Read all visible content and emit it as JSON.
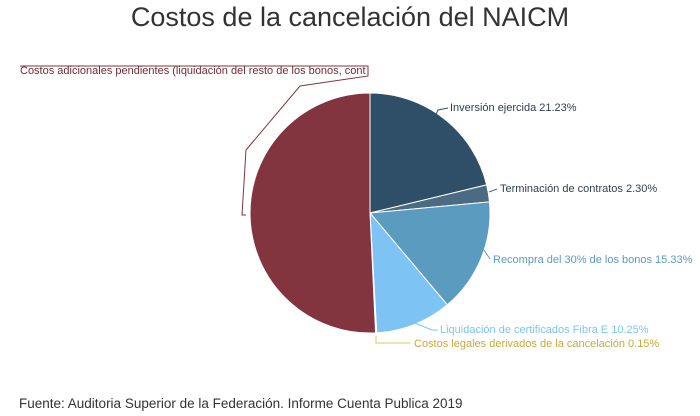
{
  "title": "Costos de la cancelación del NAICM",
  "source": "Fuente: Auditoria Superior de la Federación. Informe Cuenta Publica 2019",
  "chart_data": {
    "type": "pie",
    "title": "Costos de la cancelación del NAICM",
    "start_angle_deg": 0,
    "direction": "clockwise",
    "legend": "none",
    "slices": [
      {
        "label": "Inversión ejercida",
        "value": 21.23,
        "display": "Inversión ejercida 21.23%",
        "color": "#2f4f68"
      },
      {
        "label": "Terminación de contratos",
        "value": 2.3,
        "display": "Terminación de contratos 2.30%",
        "color": "#4a6b82"
      },
      {
        "label": "Recompra del 30% de los bonos",
        "value": 15.33,
        "display": "Recompra del 30% de los bonos 15.33%",
        "color": "#5b9bc0"
      },
      {
        "label": "Liquidación de certificados Fibra E",
        "value": 10.25,
        "display": "Liquidación de certificados Fibra E 10.25%",
        "color": "#7dc4f4"
      },
      {
        "label": "Costos legales derivados de la cancelación",
        "value": 0.15,
        "display": "Costos legales derivados de la cancelación 0.15%",
        "color": "#e3c45c"
      },
      {
        "label": "Costos adicionales pendientes (liquidación del resto de los bonos, cont",
        "value": 50.74,
        "display": "Costos adicionales pendientes (liquidación del resto de los bonos, cont",
        "color": "#82343f"
      }
    ]
  }
}
